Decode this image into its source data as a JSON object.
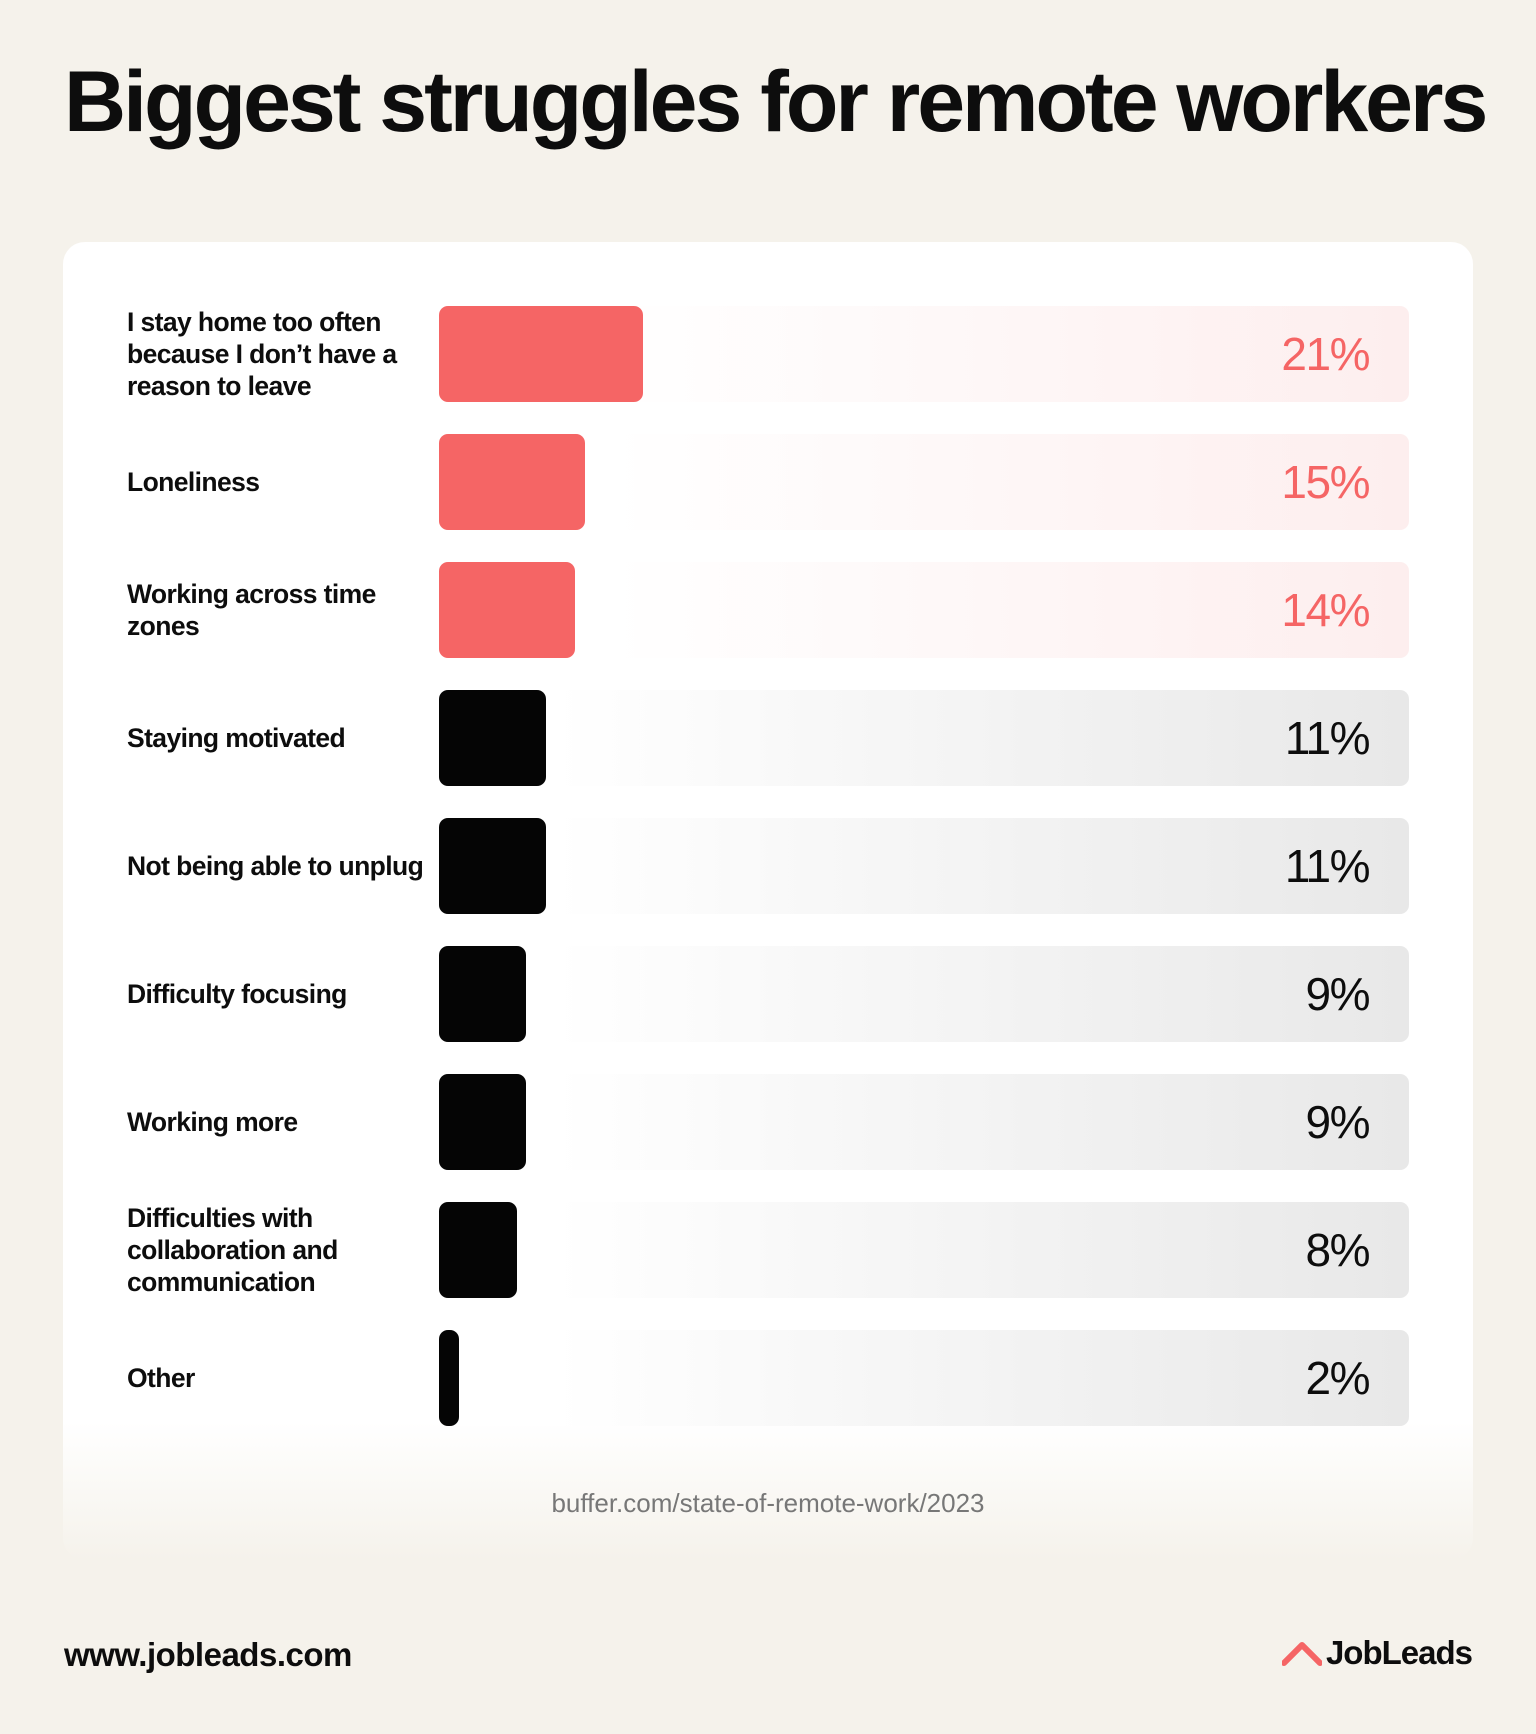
{
  "title": "Biggest struggles for remote workers",
  "chart_data": {
    "type": "bar",
    "orientation": "horizontal",
    "title": "Biggest struggles for remote workers",
    "categories": [
      "I stay home too often because I don’t have a reason to leave",
      "Loneliness",
      "Working across time zones",
      "Staying motivated",
      "Not being able to unplug",
      "Difficulty focusing",
      "Working more",
      "Difficulties with collaboration and communication",
      "Other"
    ],
    "values": [
      21,
      15,
      14,
      11,
      11,
      9,
      9,
      8,
      2
    ],
    "value_labels": [
      "21%",
      "15%",
      "14%",
      "11%",
      "11%",
      "9%",
      "9%",
      "8%",
      "2%"
    ],
    "unit": "%",
    "xlim": [
      0,
      100
    ],
    "highlighted_count": 3,
    "colors": {
      "highlight": "#f56565",
      "default": "#050505"
    }
  },
  "source": "buffer.com/state-of-remote-work/2023",
  "footer": {
    "url": "www.jobleads.com",
    "brand": "JobLeads",
    "brand_icon": "jobleads-logo-icon"
  }
}
